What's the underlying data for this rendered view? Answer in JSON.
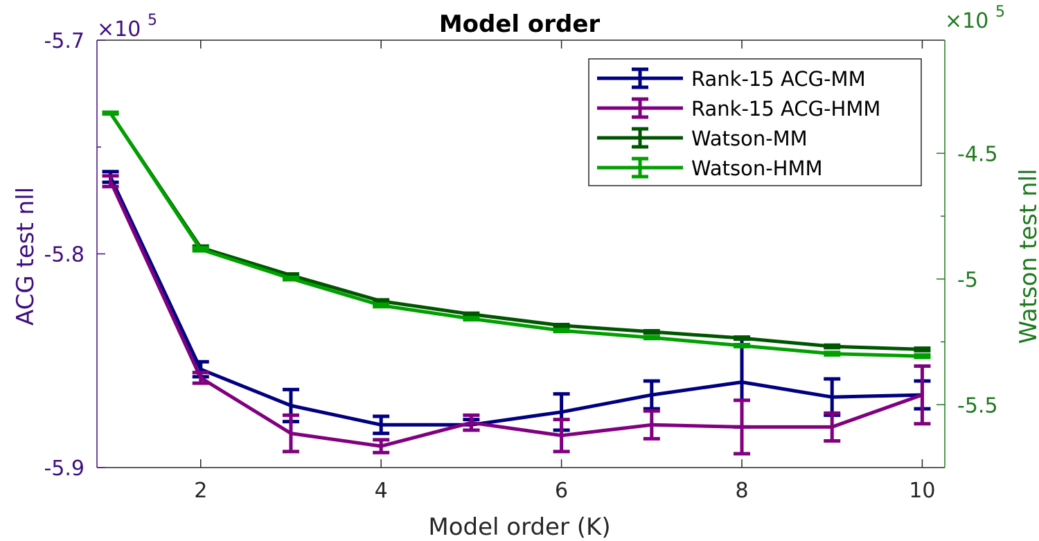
{
  "chart_data": {
    "type": "line",
    "title": "Model order",
    "xlabel": "Model order (K)",
    "ylabel_left": "ACG test nll",
    "ylabel_right": "Watson test nll",
    "xlim": [
      0.85,
      10.25
    ],
    "xticks": [
      2,
      4,
      6,
      8,
      10
    ],
    "x": [
      1,
      2,
      3,
      4,
      5,
      6,
      7,
      8,
      9,
      10
    ],
    "left_axis": {
      "ylim": [
        -5.9,
        -5.7
      ],
      "ticks": [
        -5.9,
        -5.8,
        -5.7
      ],
      "tick_labels": [
        "-5.9",
        "-5.8",
        "-5.7"
      ],
      "exponent_label": "×10",
      "exponent": "5",
      "color": "#3f0f80"
    },
    "right_axis": {
      "ylim": [
        -5.75,
        -4.05
      ],
      "ticks": [
        -5.5,
        -5.0,
        -4.5
      ],
      "tick_labels": [
        "-5.5",
        "-5",
        "-4.5"
      ],
      "exponent_label": "×10",
      "exponent": "5",
      "color": "#1f7a1f"
    },
    "series": [
      {
        "name": "Rank-15 ACG-MM",
        "axis": "left",
        "color": "#000080",
        "values": [
          -5.764,
          -5.854,
          -5.871,
          -5.88,
          -5.88,
          -5.874,
          -5.866,
          -5.86,
          -5.867,
          -5.866
        ],
        "err": [
          0.0025,
          0.0035,
          0.0075,
          0.004,
          0.0025,
          0.0085,
          0.0065,
          0.021,
          0.0085,
          0.0065
        ]
      },
      {
        "name": "Rank-15 ACG-HMM",
        "axis": "left",
        "color": "#800080",
        "values": [
          -5.766,
          -5.858,
          -5.884,
          -5.89,
          -5.879,
          -5.885,
          -5.88,
          -5.881,
          -5.881,
          -5.866
        ],
        "err": [
          0.0025,
          0.0025,
          0.0085,
          0.003,
          0.0035,
          0.0075,
          0.0065,
          0.0125,
          0.0065,
          0.0135
        ]
      },
      {
        "name": "Watson-MM",
        "axis": "right",
        "color": "#005500",
        "values": [
          -4.34,
          -4.875,
          -4.985,
          -5.088,
          -5.14,
          -5.185,
          -5.21,
          -5.235,
          -5.268,
          -5.28
        ],
        "err": [
          0.003,
          0.006,
          0.005,
          0.005,
          0.004,
          0.004,
          0.004,
          0.004,
          0.005,
          0.005
        ]
      },
      {
        "name": "Watson-HMM",
        "axis": "right",
        "color": "#00a000",
        "values": [
          -4.34,
          -4.882,
          -4.998,
          -5.105,
          -5.158,
          -5.205,
          -5.233,
          -5.265,
          -5.297,
          -5.307
        ],
        "err": [
          0.003,
          0.006,
          0.005,
          0.005,
          0.004,
          0.004,
          0.004,
          0.004,
          0.005,
          0.005
        ]
      }
    ],
    "legend": {
      "location": "top-right"
    },
    "grid": false
  }
}
